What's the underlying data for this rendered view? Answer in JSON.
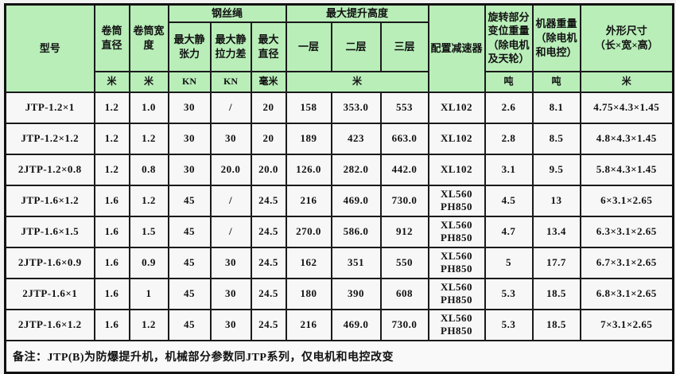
{
  "colors": {
    "header_bg": "#b9eeb9",
    "cell_bg": "#f7f7f7",
    "border": "#1a1a1a"
  },
  "chart_data": {
    "type": "table",
    "header": {
      "model": "型号",
      "drum_diameter": "卷筒直径",
      "drum_width": "卷筒宽度",
      "wire_rope_group": "钢丝绳",
      "max_static_tension": "最大静张力",
      "max_static_tension_diff": "最大静拉力差",
      "max_diameter": "最大直径",
      "max_lift_height_group": "最大提升高度",
      "layer1": "一层",
      "layer2": "二层",
      "layer3": "三层",
      "reducer": "配置减速器",
      "rotating_weight": "旋转部分\n变位重量\n（除电机\n及天轮）",
      "machine_weight": "机器重量\n（除电机\n和电控）",
      "dimensions": "外形尺寸\n（长×宽×高）"
    },
    "units": {
      "drum_diameter": "米",
      "drum_width": "米",
      "tension": "KN",
      "tension_diff": "KN",
      "rope_diameter": "毫米",
      "lift_height": "米",
      "rotating_weight": "吨",
      "machine_weight": "吨",
      "dimensions": "米"
    },
    "rows": [
      [
        "JTP-1.2×1",
        "1.2",
        "1.0",
        "30",
        "/",
        "20",
        "158",
        "353.0",
        "553",
        "XL102",
        "2.6",
        "8.1",
        "4.75×4.3×1.45"
      ],
      [
        "JTP-1.2×1.2",
        "1.2",
        "1.2",
        "30",
        "30",
        "20",
        "189",
        "423",
        "663.0",
        "XL102",
        "2.8",
        "8.5",
        "4.8×4.3×1.45"
      ],
      [
        "2JTP-1.2×0.8",
        "1.2",
        "0.8",
        "30",
        "20.0",
        "20.0",
        "126.0",
        "282.0",
        "442.0",
        "XL102",
        "3.1",
        "9.5",
        "5.8×4.3×1.45"
      ],
      [
        "JTP-1.6×1.2",
        "1.6",
        "1.2",
        "45",
        "/",
        "24.5",
        "216",
        "469.0",
        "730.0",
        "XL560\nPH850",
        "4.5",
        "13",
        "6×3.1×2.65"
      ],
      [
        "JTP-1.6×1.5",
        "1.6",
        "1.5",
        "45",
        "/",
        "24.5",
        "270.0",
        "586.0",
        "912",
        "XL560\nPH850",
        "4.7",
        "13.4",
        "6.3×3.1×2.65"
      ],
      [
        "2JTP-1.6×0.9",
        "1.6",
        "0.9",
        "45",
        "30",
        "24.5",
        "162",
        "351",
        "550",
        "XL560\nPH850",
        "5",
        "17.7",
        "6.7×3.1×2.65"
      ],
      [
        "2JTP-1.6×1",
        "1.6",
        "1",
        "45",
        "30",
        "24.5",
        "180",
        "390",
        "608",
        "XL560\nPH850",
        "5.3",
        "18.5",
        "6.8×3.1×2.65"
      ],
      [
        "2JTP-1.6×1.2",
        "1.6",
        "1.2",
        "45",
        "30",
        "24.5",
        "216",
        "469.0",
        "730.0",
        "XL560\nPH850",
        "5.3",
        "18.5",
        "7×3.1×2.65"
      ]
    ],
    "note": "备注：JTP(B)为防爆提升机，机械部分参数同JTP系列，仅电机和电控改变"
  }
}
